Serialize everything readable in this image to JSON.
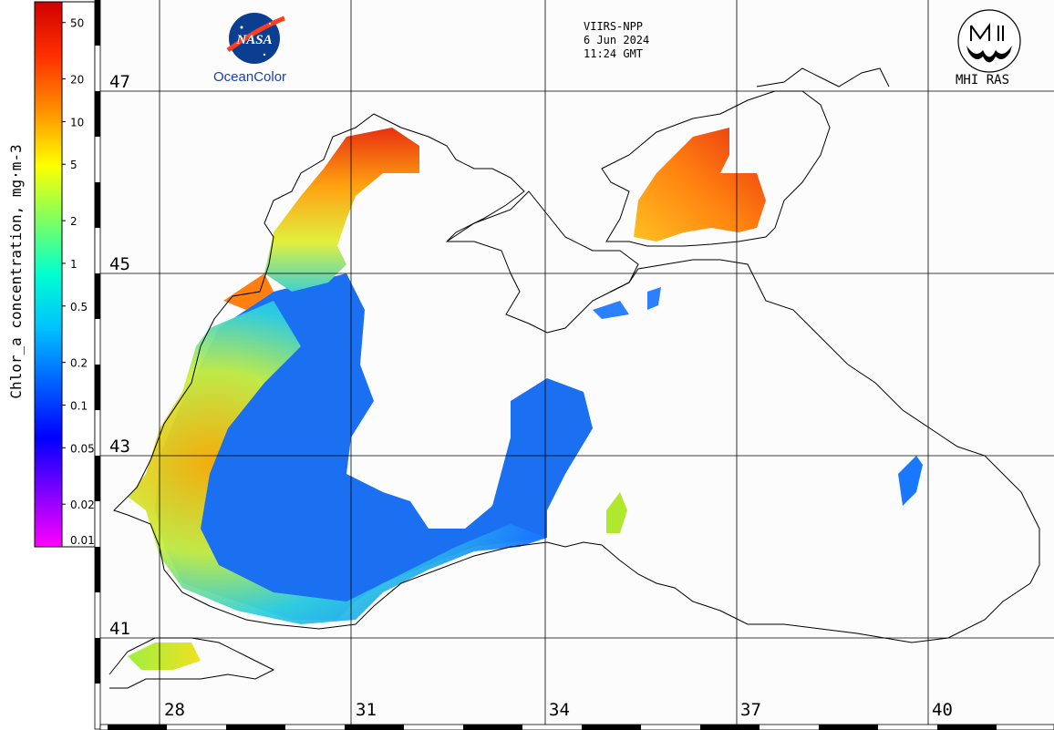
{
  "header": {
    "sensor": "VIIRS-NPP",
    "date": "6 Jun 2024",
    "time": "11:24 GMT"
  },
  "logos": {
    "nasa_text": "NASA",
    "oceancolor_text": "OceanColor",
    "mhi_text": "MHI RAS"
  },
  "colorbar": {
    "title": "Chlor_a concentration, mg·m-3",
    "ticks": [
      "50",
      "20",
      "10",
      "5",
      "2",
      "1",
      "0.5",
      "0.2",
      "0.1",
      "0.05",
      "0.02",
      "0.01"
    ],
    "colors": [
      "#ff00ff",
      "#8000ff",
      "#0000ff",
      "#0060ff",
      "#00c0ff",
      "#00ffd0",
      "#80ff60",
      "#ffff00",
      "#ff9000",
      "#ff3000",
      "#d00000"
    ]
  },
  "grid": {
    "lat_labels": [
      "47",
      "45",
      "43",
      "41"
    ],
    "lon_labels": [
      "28",
      "31",
      "34",
      "37",
      "40"
    ]
  }
}
